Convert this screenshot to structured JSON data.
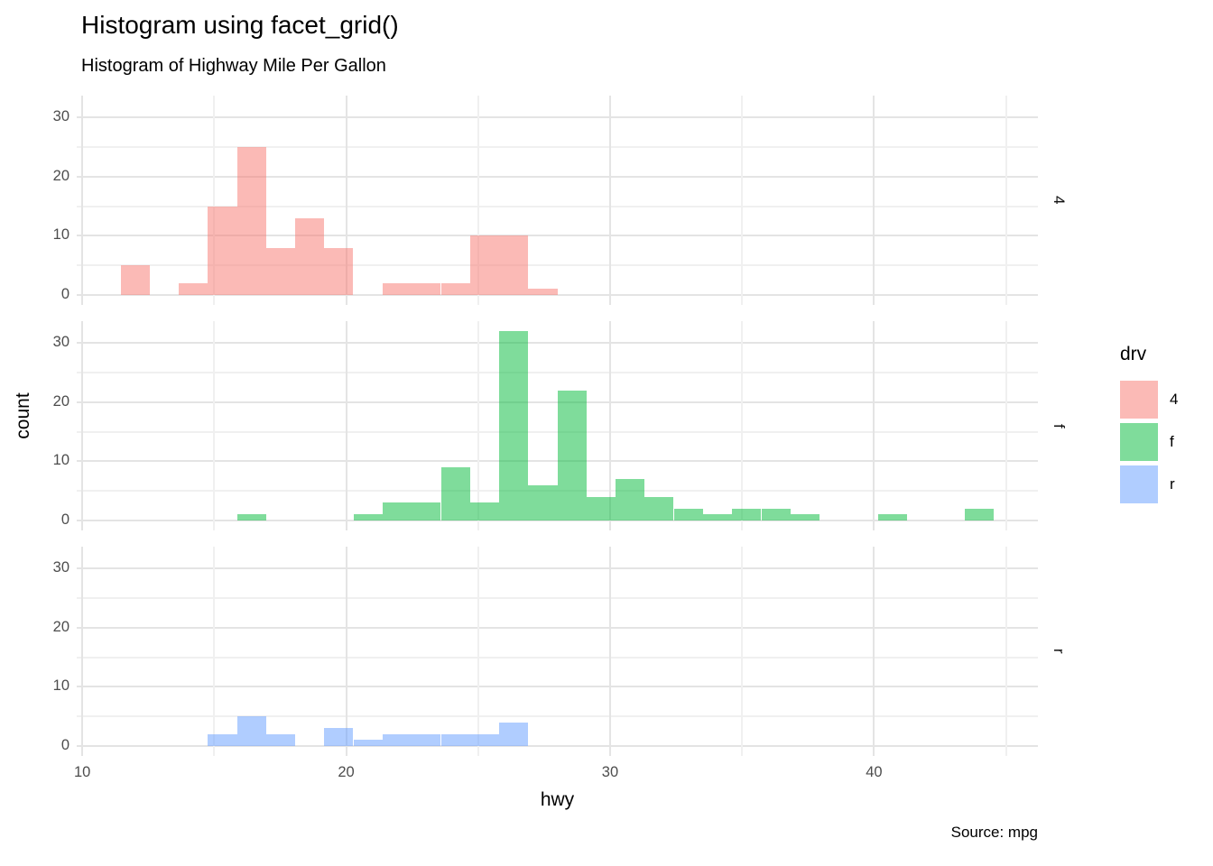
{
  "header": {
    "title": "Histogram using facet_grid()",
    "subtitle": "Histogram of Highway Mile Per Gallon"
  },
  "caption": "Source: mpg",
  "axes": {
    "x": {
      "title": "hwy",
      "major_ticks": [
        10,
        20,
        30,
        40
      ],
      "minor_ticks": [
        15,
        25,
        35,
        45
      ],
      "limits": [
        9.79,
        46.21
      ]
    },
    "y": {
      "title": "count",
      "major_ticks": [
        0,
        10,
        20,
        30
      ],
      "minor_ticks": [
        5,
        15,
        25
      ],
      "limits": [
        -1.69,
        33.69
      ]
    }
  },
  "facets": [
    {
      "label": "4"
    },
    {
      "label": "f"
    },
    {
      "label": "r"
    }
  ],
  "legend": {
    "title": "drv",
    "items": [
      {
        "label": "4",
        "color": "rgba(248,118,109,0.5)"
      },
      {
        "label": "f",
        "color": "rgba(0,186,56,0.5)"
      },
      {
        "label": "r",
        "color": "rgba(97,156,255,0.5)"
      }
    ]
  },
  "chart_data": {
    "type": "bar",
    "variant": "faceted-histogram",
    "title": "Histogram using facet_grid()",
    "subtitle": "Histogram of Highway Mile Per Gallon",
    "xlabel": "hwy",
    "ylabel": "count",
    "fill_variable": "drv",
    "facet_variable": "drv",
    "xlim": [
      9.79,
      46.21
    ],
    "ylim": [
      -1.69,
      33.69
    ],
    "binwidth": 1.1034,
    "bin_centers": [
      12,
      13.1,
      14.21,
      15.31,
      16.41,
      17.52,
      18.62,
      19.72,
      20.83,
      21.93,
      23.03,
      24.14,
      25.24,
      26.34,
      27.45,
      28.55,
      29.66,
      30.76,
      31.86,
      32.97,
      34.07,
      35.17,
      36.28,
      37.38,
      38.48,
      39.59,
      40.69,
      41.79,
      42.9,
      44
    ],
    "series": [
      {
        "name": "4",
        "facet": "4",
        "values": [
          5,
          0,
          2,
          15,
          25,
          8,
          13,
          8,
          0,
          2,
          2,
          2,
          10,
          10,
          1,
          0,
          0,
          0,
          0,
          0,
          0,
          0,
          0,
          0,
          0,
          0,
          0,
          0,
          0,
          0
        ]
      },
      {
        "name": "f",
        "facet": "f",
        "values": [
          0,
          0,
          0,
          0,
          1,
          0,
          0,
          0,
          1,
          3,
          3,
          9,
          3,
          32,
          6,
          22,
          4,
          7,
          4,
          2,
          1,
          2,
          2,
          1,
          0,
          0,
          1,
          0,
          0,
          2
        ]
      },
      {
        "name": "r",
        "facet": "r",
        "values": [
          0,
          0,
          0,
          2,
          5,
          2,
          0,
          3,
          1,
          2,
          2,
          2,
          2,
          4,
          0,
          0,
          0,
          0,
          0,
          0,
          0,
          0,
          0,
          0,
          0,
          0,
          0,
          0,
          0,
          0
        ]
      }
    ],
    "legend_position": "right",
    "grid": true
  },
  "colors": {
    "grid_major": "#E4E4E4",
    "grid_minor": "#F0F0F0",
    "tick_text": "#4D4D4D",
    "text": "#000000",
    "fills": {
      "4": "rgba(248,118,109,0.5)",
      "f": "rgba(0,186,56,0.5)",
      "r": "rgba(97,156,255,0.5)"
    }
  }
}
